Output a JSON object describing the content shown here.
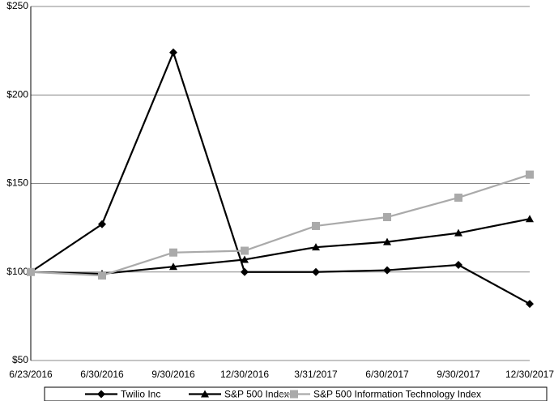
{
  "chart_data": {
    "type": "line",
    "categories": [
      "6/23/2016",
      "6/30/2016",
      "9/30/2016",
      "12/30/2016",
      "3/31/2017",
      "6/30/2017",
      "9/30/2017",
      "12/30/2017"
    ],
    "series": [
      {
        "name": "Twilio Inc",
        "color": "#000000",
        "marker": "diamond",
        "values": [
          100,
          127,
          224,
          100,
          100,
          101,
          104,
          82
        ]
      },
      {
        "name": "S&P 500 Index",
        "color": "#000000",
        "marker": "triangle",
        "values": [
          100,
          99,
          103,
          107,
          114,
          117,
          122,
          130
        ]
      },
      {
        "name": "S&P 500 Information Technology Index",
        "color": "#aaaaaa",
        "marker": "square",
        "values": [
          100,
          98,
          111,
          112,
          126,
          131,
          142,
          155
        ]
      }
    ],
    "ylim": [
      50,
      250
    ],
    "yticks": [
      {
        "value": 50,
        "label": "$50"
      },
      {
        "value": 100,
        "label": "$100"
      },
      {
        "value": 150,
        "label": "$150"
      },
      {
        "value": 200,
        "label": "$200"
      },
      {
        "value": 250,
        "label": "$250"
      }
    ],
    "grid": true,
    "legend": "bottom"
  }
}
